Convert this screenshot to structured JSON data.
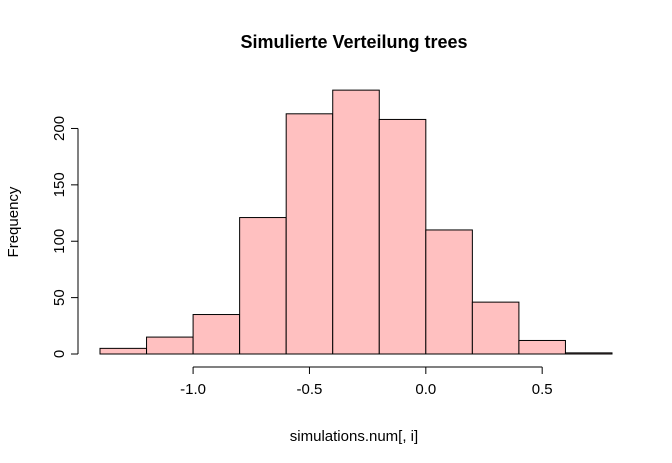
{
  "chart_data": {
    "type": "bar",
    "title": "Simulierte Verteilung trees",
    "xlabel": "simulations.num[, i]",
    "ylabel": "Frequency",
    "bin_edges": [
      -1.4,
      -1.2,
      -1.0,
      -0.8,
      -0.6,
      -0.4,
      -0.2,
      0.0,
      0.2,
      0.4,
      0.6,
      0.8
    ],
    "values": [
      5,
      15,
      35,
      121,
      213,
      234,
      208,
      110,
      46,
      12,
      1
    ],
    "xlim": [
      -1.4,
      0.8
    ],
    "ylim": [
      0,
      235
    ],
    "x_ticks": [
      -1.0,
      -0.5,
      0.0,
      0.5
    ],
    "x_tick_labels": [
      "-1.0",
      "-0.5",
      "0.0",
      "0.5"
    ],
    "x_axis_range": [
      -1.0,
      0.5
    ],
    "y_ticks": [
      0,
      50,
      100,
      150,
      200
    ],
    "y_tick_labels": [
      "0",
      "50",
      "100",
      "150",
      "200"
    ],
    "bar_color": "#ffc0c0",
    "edge_color": "#000000",
    "grid": false,
    "legend": "none"
  }
}
